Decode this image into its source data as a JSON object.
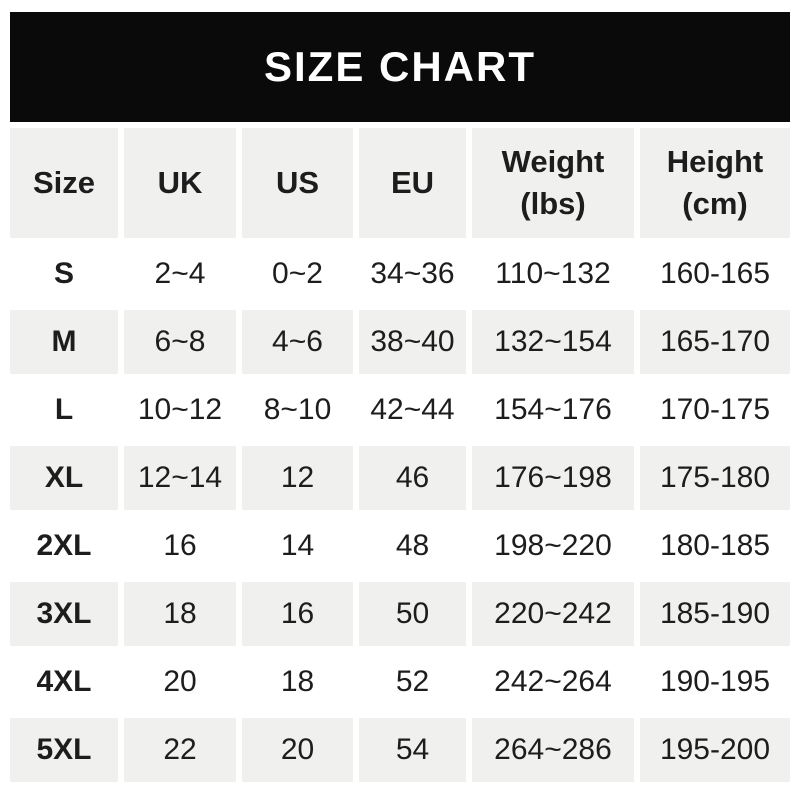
{
  "chart_data": {
    "type": "table",
    "title": "SIZE CHART",
    "columns": [
      "Size",
      "UK",
      "US",
      "EU",
      "Weight\n(lbs)",
      "Height\n(cm)"
    ],
    "rows": [
      [
        "S",
        "2~4",
        "0~2",
        "34~36",
        "110~132",
        "160-165"
      ],
      [
        "M",
        "6~8",
        "4~6",
        "38~40",
        "132~154",
        "165-170"
      ],
      [
        "L",
        "10~12",
        "8~10",
        "42~44",
        "154~176",
        "170-175"
      ],
      [
        "XL",
        "12~14",
        "12",
        "46",
        "176~198",
        "175-180"
      ],
      [
        "2XL",
        "16",
        "14",
        "48",
        "198~220",
        "180-185"
      ],
      [
        "3XL",
        "18",
        "16",
        "50",
        "220~242",
        "185-190"
      ],
      [
        "4XL",
        "20",
        "18",
        "52",
        "242~264",
        "190-195"
      ],
      [
        "5XL",
        "22",
        "20",
        "54",
        "264~286",
        "195-200"
      ]
    ]
  },
  "colors": {
    "banner_bg": "#0a0a0a",
    "banner_text": "#ffffff",
    "row_alt_bg": "#f0f0ef",
    "row_bg": "#ffffff",
    "text": "#1d1d1d"
  }
}
